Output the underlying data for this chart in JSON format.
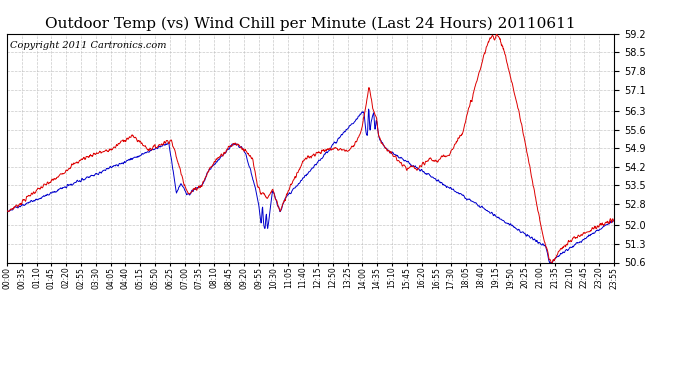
{
  "title": "Outdoor Temp (vs) Wind Chill per Minute (Last 24 Hours) 20110611",
  "copyright": "Copyright 2011 Cartronics.com",
  "ylim": [
    50.6,
    59.2
  ],
  "yticks": [
    50.6,
    51.3,
    52.0,
    52.8,
    53.5,
    54.2,
    54.9,
    55.6,
    56.3,
    57.1,
    57.8,
    58.5,
    59.2
  ],
  "xtick_labels": [
    "00:00",
    "00:35",
    "01:10",
    "01:45",
    "02:20",
    "02:55",
    "03:30",
    "04:05",
    "04:40",
    "05:15",
    "05:50",
    "06:25",
    "07:00",
    "07:35",
    "08:10",
    "08:45",
    "09:20",
    "09:55",
    "10:30",
    "11:05",
    "11:40",
    "12:15",
    "12:50",
    "13:25",
    "14:00",
    "14:35",
    "15:10",
    "15:45",
    "16:20",
    "16:55",
    "17:30",
    "18:05",
    "18:40",
    "19:15",
    "19:50",
    "20:25",
    "21:00",
    "21:35",
    "22:10",
    "22:45",
    "23:20",
    "23:55"
  ],
  "red_color": "#dd0000",
  "blue_color": "#0000cc",
  "bg_color": "#ffffff",
  "grid_color": "#bbbbbb",
  "title_fontsize": 11,
  "copyright_fontsize": 7
}
